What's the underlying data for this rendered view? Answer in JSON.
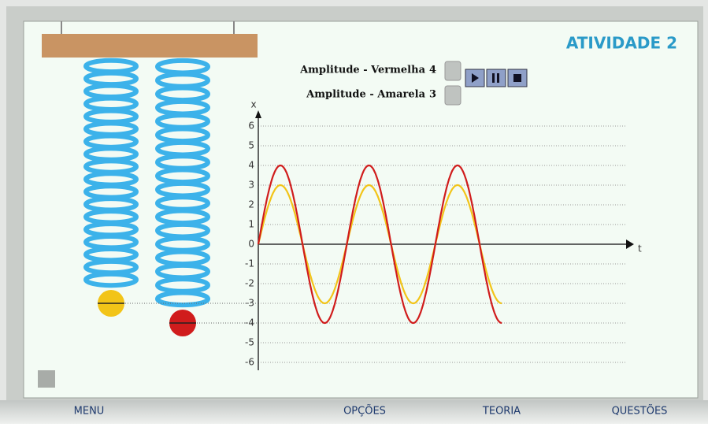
{
  "header": {
    "title": "ATIVIDADE 2"
  },
  "controls": [
    {
      "label": "Amplitude - Vermelha",
      "value": 4,
      "color": "#d01c1c"
    },
    {
      "label": "Amplitude - Amarela",
      "value": 3,
      "color": "#f2c418"
    }
  ],
  "chart_data": {
    "type": "line",
    "y_label": "x",
    "x_label": "t",
    "ylim": [
      -6.4,
      6.8
    ],
    "yticks": [
      -6,
      -5,
      -4,
      -3,
      -2,
      -1,
      0,
      1,
      2,
      3,
      4,
      5,
      6
    ],
    "grid": true
  },
  "menu": [
    "MENU",
    "OPÇÕES",
    "TEORIA",
    "QUESTÕES"
  ]
}
